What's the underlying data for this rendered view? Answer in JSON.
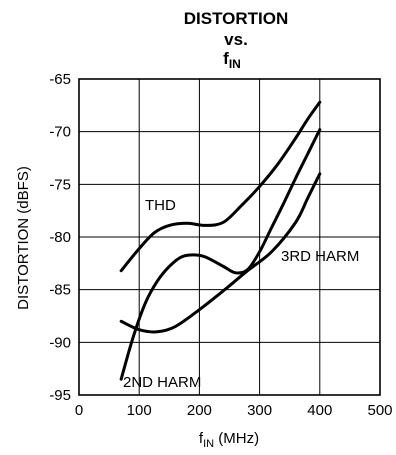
{
  "chart_data": {
    "type": "line",
    "title": {
      "line1": "DISTORTION",
      "line2": "vs.",
      "line3_main": "f",
      "line3_sub": "IN"
    },
    "xlabel": {
      "main": "f",
      "sub": "IN",
      "rest": " (MHz)"
    },
    "ylabel": "DISTORTION (dBFS)",
    "xlim": [
      0,
      500
    ],
    "ylim": [
      -95,
      -65
    ],
    "xticks": [
      0,
      100,
      200,
      300,
      400,
      500
    ],
    "yticks": [
      -65,
      -70,
      -75,
      -80,
      -85,
      -90,
      -95
    ],
    "xtick_labels": [
      "0",
      "100",
      "200",
      "300",
      "400",
      "500"
    ],
    "ytick_labels": [
      "-65",
      "-70",
      "-75",
      "-80",
      "-85",
      "-90",
      "-95"
    ],
    "grid": true,
    "legend": "none (series labeled directly on curves)",
    "series": [
      {
        "name": "THD",
        "x": [
          70,
          100,
          125,
          150,
          180,
          210,
          240,
          270,
          300,
          330,
          360,
          380,
          400
        ],
        "y": [
          -83.2,
          -81.1,
          -79.6,
          -78.9,
          -78.7,
          -78.9,
          -78.6,
          -77.0,
          -75.2,
          -73.1,
          -70.6,
          -68.8,
          -67.2
        ]
      },
      {
        "name": "2ND HARM",
        "x": [
          70,
          90,
          110,
          130,
          150,
          170,
          190,
          210,
          240,
          260,
          280,
          300,
          320,
          340,
          360,
          380,
          400
        ],
        "y": [
          -93.5,
          -89.5,
          -86.3,
          -84.2,
          -82.8,
          -81.9,
          -81.7,
          -81.9,
          -82.8,
          -83.4,
          -83.1,
          -81.4,
          -79.1,
          -76.8,
          -74.4,
          -72.1,
          -69.8
        ]
      },
      {
        "name": "3RD HARM",
        "x": [
          70,
          100,
          130,
          160,
          200,
          240,
          280,
          320,
          360,
          380,
          400
        ],
        "y": [
          -88.0,
          -88.8,
          -89.0,
          -88.5,
          -86.9,
          -85.1,
          -83.2,
          -81.4,
          -78.6,
          -76.3,
          -74.0
        ]
      }
    ],
    "annotations": [
      {
        "text": "THD",
        "series": "THD"
      },
      {
        "text": "3RD HARM",
        "series": "3RD HARM"
      },
      {
        "text": "2ND HARM",
        "series": "2ND HARM"
      }
    ]
  }
}
